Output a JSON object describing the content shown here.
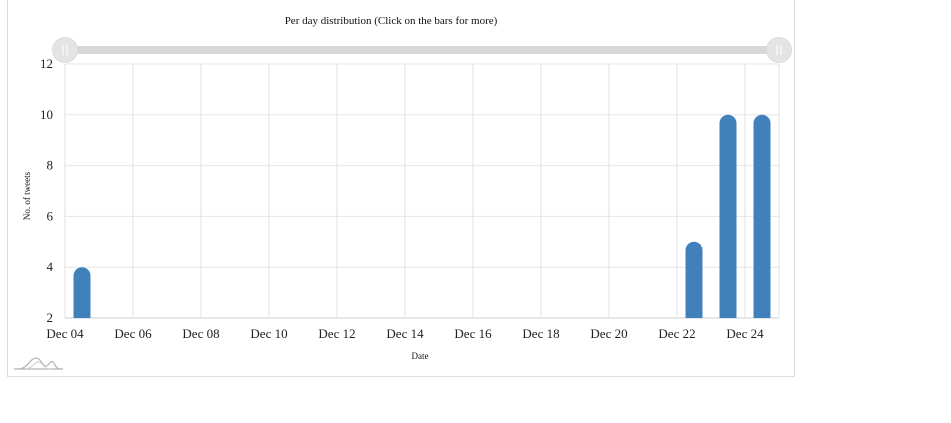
{
  "chart_data": {
    "type": "bar",
    "title": "Per day distribution (Click on the bars for more)",
    "xlabel": "Date",
    "ylabel": "No. of tweets",
    "x_ticks": [
      "Dec 04",
      "Dec 06",
      "Dec 08",
      "Dec 10",
      "Dec 12",
      "Dec 14",
      "Dec 16",
      "Dec 18",
      "Dec 20",
      "Dec 22",
      "Dec 24"
    ],
    "x_range": [
      "2014-12-04",
      "2014-12-25"
    ],
    "ylim": [
      2,
      12
    ],
    "y_ticks": [
      2,
      4,
      6,
      8,
      10,
      12
    ],
    "grid": true,
    "legend": "none",
    "color": "#4080bb",
    "categories": [
      "Dec 04",
      "Dec 22",
      "Dec 23",
      "Dec 24"
    ],
    "dates": [
      "2014-12-04",
      "2014-12-22",
      "2014-12-23",
      "2014-12-24"
    ],
    "values": [
      4,
      5,
      10,
      10
    ]
  },
  "range_slider": {
    "track_color": "#d8d8d8",
    "handle_color": "#e4e4e4",
    "handle_icon": "grip-lines-icon"
  },
  "watermark_icon": "sparkline-logo-icon"
}
